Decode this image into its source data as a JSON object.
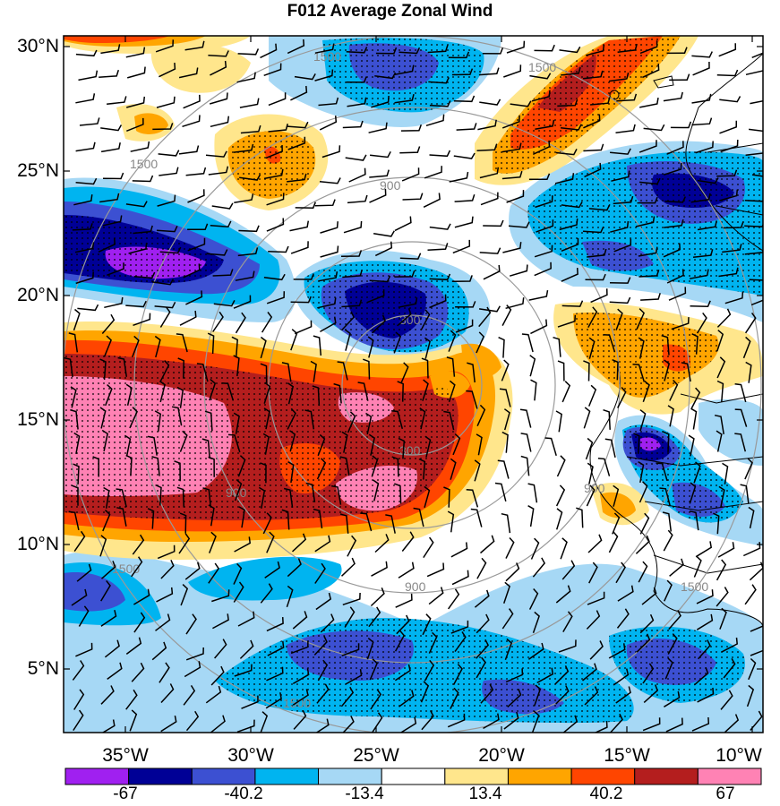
{
  "title": "F012 Average Zonal Wind",
  "lat_labels": [
    "30°N",
    "25°N",
    "20°N",
    "15°N",
    "10°N",
    "5°N"
  ],
  "lon_labels": [
    "35°W",
    "30°W",
    "25°W",
    "20°W",
    "15°W",
    "10°W"
  ],
  "range_ring_labels": [
    "300",
    "300",
    "900",
    "900",
    "900",
    "900",
    "1500",
    "1500",
    "1500",
    "1500",
    "1500",
    "1500"
  ],
  "colorbar": {
    "labels": [
      "-67",
      "-40.2",
      "-13.4",
      "13.4",
      "40.2",
      "67"
    ],
    "colors": [
      "#a020f0",
      "#000096",
      "#3c50d2",
      "#00b4f0",
      "#a6d8f5",
      "#ffffff",
      "#ffe68c",
      "#ffa500",
      "#ff4500",
      "#b41e1e",
      "#ff82b4"
    ]
  }
}
